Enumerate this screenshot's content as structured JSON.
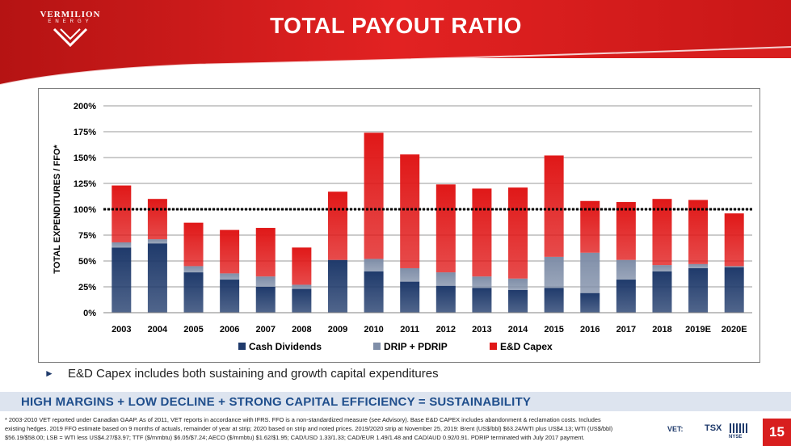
{
  "brand": {
    "name": "VERMILION",
    "sub": "ENERGY"
  },
  "slide": {
    "title": "TOTAL PAYOUT RATIO",
    "page_number": "15"
  },
  "bullet": "E&D Capex includes both sustaining and growth capital expenditures",
  "tagline": "HIGH MARGINS + LOW DECLINE + STRONG CAPITAL EFFICIENCY = SUSTAINABILITY",
  "footnote_lines": [
    "* 2003-2010 VET reported under Canadian GAAP.  As of 2011, VET reports in accordance with IFRS. FFO is a non-standardized measure (see Advisory). Base E&D CAPEX includes abandonment & reclamation costs. Includes",
    "existing hedges. 2019 FFO estimate based on 9 months of actuals, remainder of year at strip; 2020 based on strip and noted prices.  2019/2020 strip at November 25, 2019: Brent (US$/bbl) $63.24/WTI plus US$4.13; WTI (US$/bbl)",
    "$56.19/$58.00; LSB = WTI less US$4.27/$3.97; TTF ($/mmbtu) $6.05/$7.24; AECO ($/mmbtu) $1.62/$1.95; CAD/USD 1.33/1.33; CAD/EUR 1.49/1.48 and CAD/AUD 0.92/0.91. PDRIP terminated with July 2017 payment."
  ],
  "listings": {
    "ticker": "VET:",
    "exchange1": "TSX",
    "exchange2": "NYSE"
  },
  "colors": {
    "brand_red": "#d81e1e",
    "cash_dividends": "#1f3a6b",
    "drip": "#7f8ea8",
    "capex": "#e01818",
    "tagline_blue": "#1f4e8c"
  },
  "chart_data": {
    "type": "bar",
    "stacked": true,
    "ylabel": "TOTAL EXPENDITURES / FFO*",
    "xlabel": "",
    "ylim": [
      0,
      200
    ],
    "yticks": [
      0,
      25,
      50,
      75,
      100,
      125,
      150,
      175,
      200
    ],
    "ytick_labels": [
      "0%",
      "25%",
      "50%",
      "75%",
      "100%",
      "125%",
      "150%",
      "175%",
      "200%"
    ],
    "grid": true,
    "reference_line": {
      "value": 100,
      "style": "dotted"
    },
    "legend_position": "bottom",
    "categories": [
      "2003",
      "2004",
      "2005",
      "2006",
      "2007",
      "2008",
      "2009",
      "2010",
      "2011",
      "2012",
      "2013",
      "2014",
      "2015",
      "2016",
      "2017",
      "2018",
      "2019E",
      "2020E"
    ],
    "series": [
      {
        "name": "Cash Dividends",
        "color": "#1f3a6b",
        "values": [
          63,
          67,
          39,
          32,
          25,
          23,
          51,
          40,
          30,
          26,
          24,
          22,
          24,
          19,
          32,
          40,
          43,
          44
        ]
      },
      {
        "name": "DRIP + PDRIP",
        "color": "#7f8ea8",
        "values": [
          5,
          4,
          6,
          6,
          10,
          4,
          0,
          12,
          13,
          13,
          11,
          11,
          30,
          39,
          19,
          6,
          4,
          1
        ]
      },
      {
        "name": "E&D Capex",
        "color": "#e01818",
        "values": [
          55,
          39,
          42,
          42,
          47,
          36,
          66,
          122,
          110,
          85,
          85,
          88,
          98,
          50,
          56,
          64,
          62,
          51
        ]
      }
    ]
  }
}
